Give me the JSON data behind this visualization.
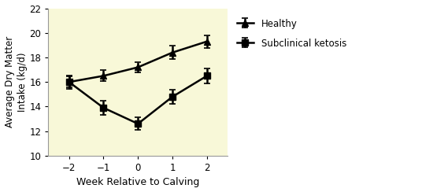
{
  "x": [
    -2,
    -1,
    0,
    1,
    2
  ],
  "healthy_y": [
    16.0,
    16.5,
    17.2,
    18.4,
    19.3
  ],
  "healthy_yerr": [
    0.55,
    0.45,
    0.4,
    0.55,
    0.5
  ],
  "ketosis_y": [
    16.0,
    13.9,
    12.6,
    14.8,
    16.5
  ],
  "ketosis_yerr": [
    0.45,
    0.55,
    0.5,
    0.6,
    0.6
  ],
  "ylim": [
    10,
    22
  ],
  "yticks": [
    10,
    12,
    14,
    16,
    18,
    20,
    22
  ],
  "xlim": [
    -2.6,
    2.6
  ],
  "xticks": [
    -2,
    -1,
    0,
    1,
    2
  ],
  "xlabel": "Week Relative to Calving",
  "ylabel": "Average Dry Matter\nIntake (kg/d)",
  "legend_labels": [
    "Healthy",
    "Subclinical ketosis"
  ],
  "line_color": "#000000",
  "plot_bg_color": "#f8f8d8",
  "fig_bg_color": "#ffffff",
  "marker_healthy": "^",
  "marker_ketosis": "s",
  "marker_size": 6,
  "linewidth": 1.8,
  "capsize": 3
}
